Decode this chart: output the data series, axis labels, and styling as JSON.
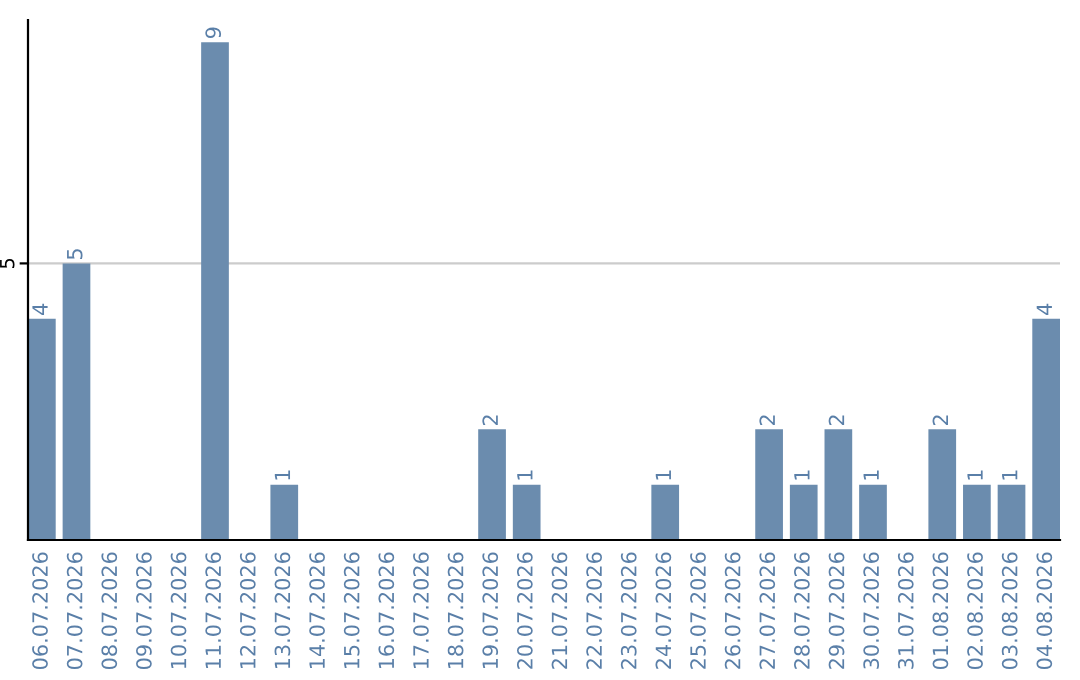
{
  "chart_data": {
    "type": "bar",
    "categories": [
      "06.07.2026",
      "07.07.2026",
      "08.07.2026",
      "09.07.2026",
      "10.07.2026",
      "11.07.2026",
      "12.07.2026",
      "13.07.2026",
      "14.07.2026",
      "15.07.2026",
      "16.07.2026",
      "17.07.2026",
      "18.07.2026",
      "19.07.2026",
      "20.07.2026",
      "21.07.2026",
      "22.07.2026",
      "23.07.2026",
      "24.07.2026",
      "25.07.2026",
      "26.07.2026",
      "27.07.2026",
      "28.07.2026",
      "29.07.2026",
      "30.07.2026",
      "31.07.2026",
      "01.08.2026",
      "02.08.2026",
      "03.08.2026",
      "04.08.2026"
    ],
    "values": [
      4,
      5,
      0,
      0,
      0,
      9,
      0,
      1,
      0,
      0,
      0,
      0,
      0,
      2,
      1,
      0,
      0,
      0,
      1,
      0,
      0,
      2,
      1,
      2,
      1,
      0,
      2,
      1,
      1,
      4
    ],
    "value_labels": [
      "4",
      "5",
      null,
      null,
      null,
      "9",
      null,
      "1",
      null,
      null,
      null,
      null,
      null,
      "2",
      "1",
      null,
      null,
      null,
      "1",
      null,
      null,
      "2",
      "1",
      "2",
      "1",
      null,
      "2",
      "1",
      "1",
      "4"
    ],
    "color": "#6b8cae",
    "ylim": [
      0,
      9.4
    ],
    "yticks": [
      5
    ],
    "grid": "y"
  }
}
